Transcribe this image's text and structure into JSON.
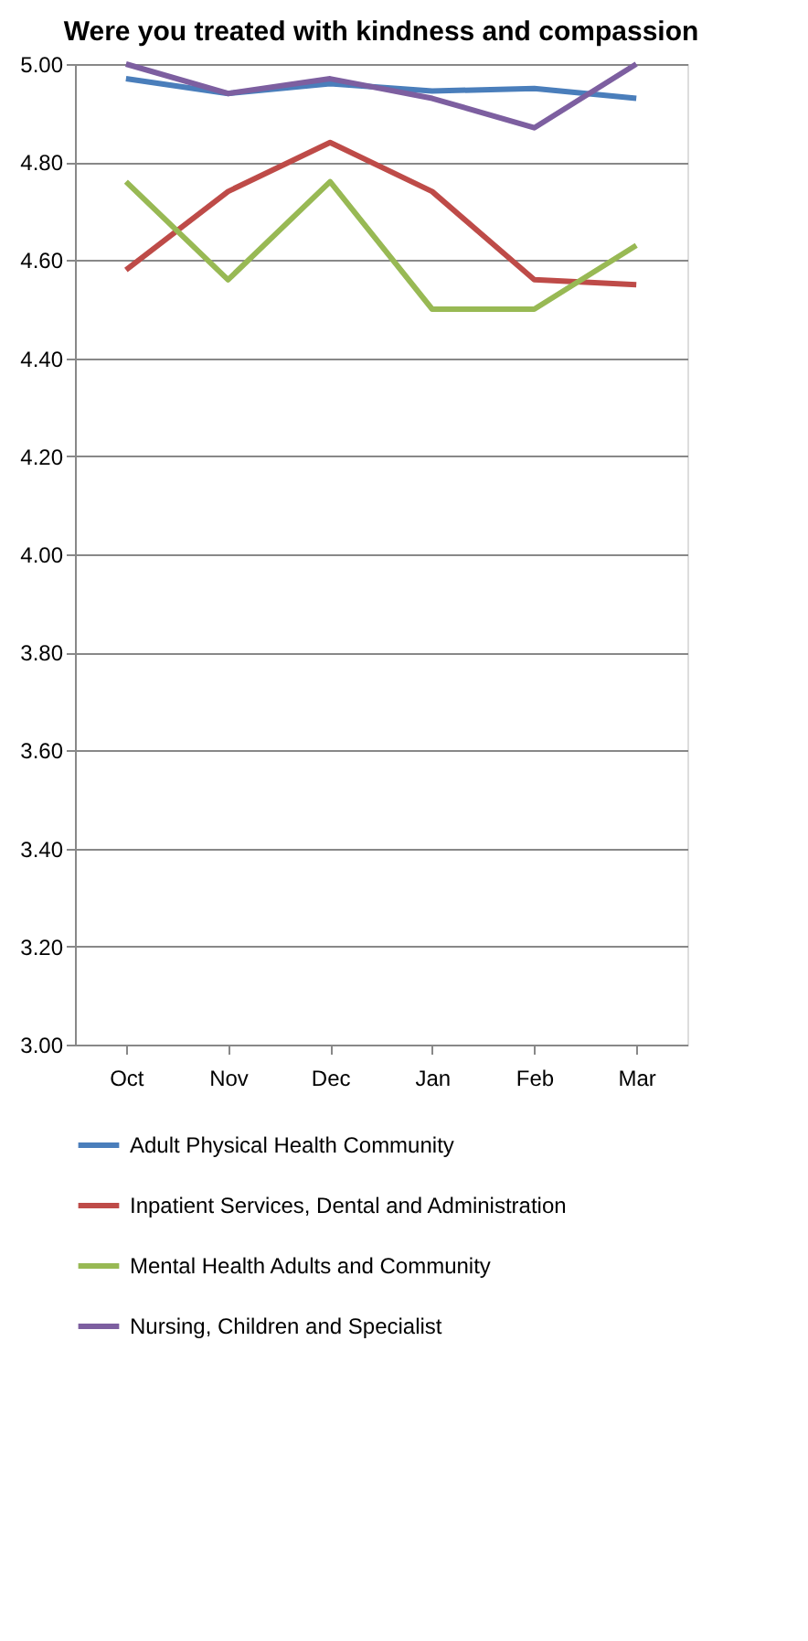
{
  "chart_data": {
    "type": "line",
    "title": "Were you treated with kindness and compassion",
    "categories": [
      "Oct",
      "Nov",
      "Dec",
      "Jan",
      "Feb",
      "Mar"
    ],
    "series": [
      {
        "name": "Adult Physical Health Community",
        "color": "#4a7ebb",
        "values": [
          4.97,
          4.94,
          4.96,
          4.945,
          4.95,
          4.93
        ]
      },
      {
        "name": "Inpatient Services, Dental and Administration",
        "color": "#be4b48",
        "values": [
          4.58,
          4.74,
          4.84,
          4.74,
          4.56,
          4.55
        ]
      },
      {
        "name": "Mental Health Adults and Community",
        "color": "#98b954",
        "values": [
          4.76,
          4.56,
          4.76,
          4.5,
          4.5,
          4.63
        ]
      },
      {
        "name": "Nursing, Children and Specialist",
        "color": "#7d5fa0",
        "values": [
          5.0,
          4.94,
          4.97,
          4.93,
          4.87,
          5.0
        ]
      }
    ],
    "ylim": [
      3.0,
      5.0
    ],
    "yticks": [
      {
        "value": 3.0,
        "label": "3.00"
      },
      {
        "value": 3.2,
        "label": "3.20"
      },
      {
        "value": 3.4,
        "label": "3.40"
      },
      {
        "value": 3.6,
        "label": "3.60"
      },
      {
        "value": 3.8,
        "label": "3.80"
      },
      {
        "value": 4.0,
        "label": "4.00"
      },
      {
        "value": 4.2,
        "label": "4.20"
      },
      {
        "value": 4.4,
        "label": "4.40"
      },
      {
        "value": 4.6,
        "label": "4.60"
      },
      {
        "value": 4.8,
        "label": "4.80"
      },
      {
        "value": 5.0,
        "label": "5.00"
      }
    ],
    "grid": "y",
    "legend": "bottom",
    "marker": "none",
    "line_style": "solid"
  }
}
